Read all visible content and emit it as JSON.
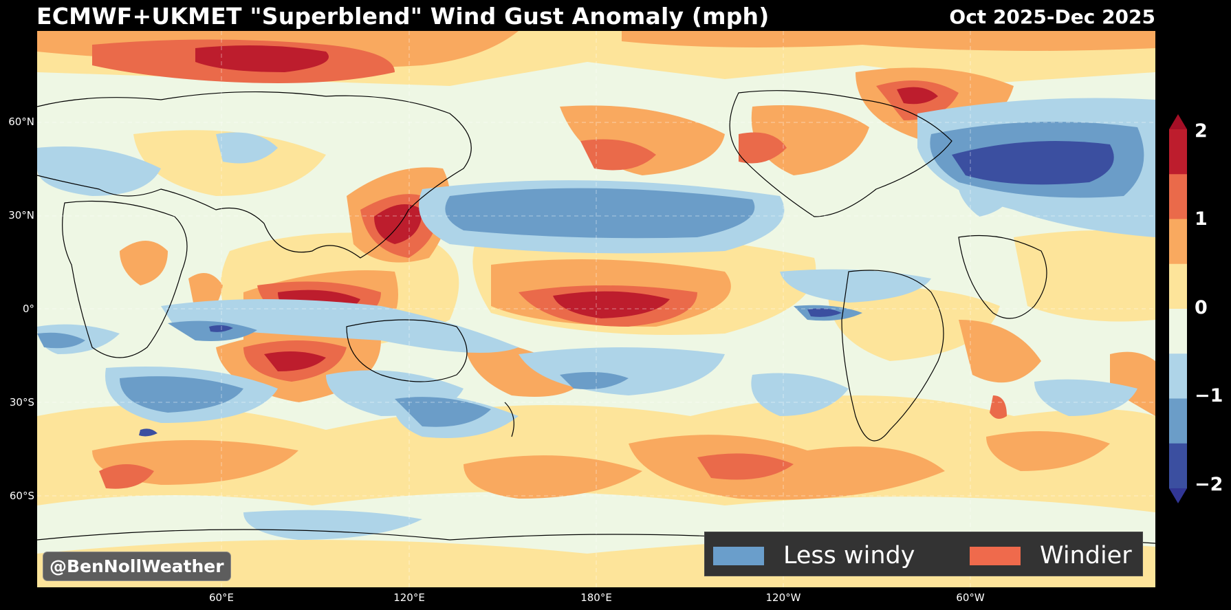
{
  "title": "ECMWF+UKMET \"Superblend\" Wind Gust Anomaly (mph)",
  "period": "Oct 2025-Dec 2025",
  "latitude_labels": [
    "60°N",
    "30°N",
    "0°",
    "30°S",
    "60°S"
  ],
  "longitude_labels": [
    "60°E",
    "120°E",
    "180°E",
    "120°W",
    "60°W"
  ],
  "colorbar": {
    "ticks": [
      "2",
      "1",
      "0",
      "−1",
      "−2"
    ],
    "levels": [
      -2,
      -1.5,
      -1,
      -0.5,
      0,
      0.5,
      1,
      1.5,
      2
    ],
    "colors": [
      "#3b4fa0",
      "#6b9dc8",
      "#aed4e8",
      "#eef7e4",
      "#fde49a",
      "#f9a95f",
      "#ea6a4a",
      "#bd1d2d"
    ],
    "extend_low_color": "#313695",
    "extend_high_color": "#a50f26"
  },
  "legend": {
    "less_label": "Less windy",
    "more_label": "Windier",
    "less_color": "#6a9ecb",
    "more_color": "#ef6a4c"
  },
  "credit": "@BenNollWeather"
}
